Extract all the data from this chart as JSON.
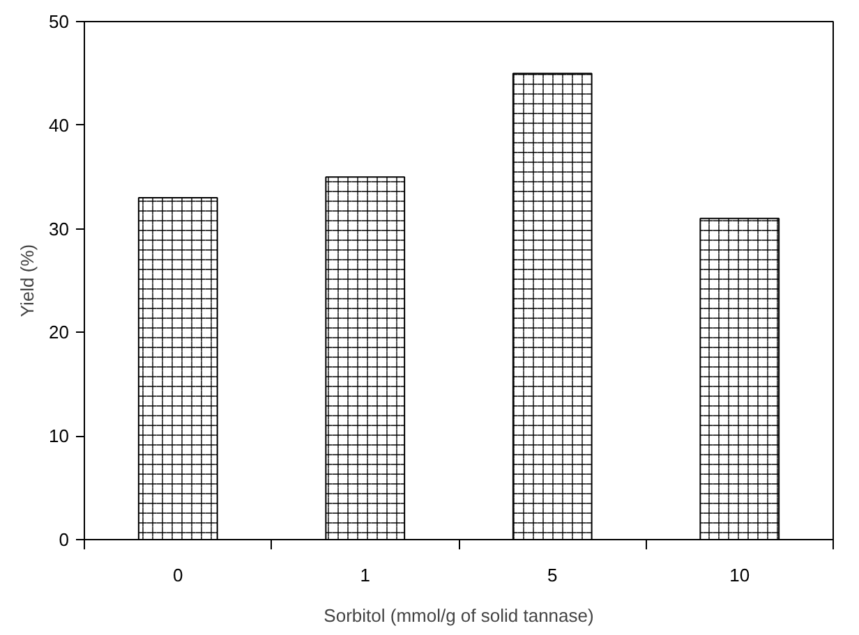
{
  "chart_data": {
    "type": "bar",
    "xlabel": "Sorbitol (mmol/g of solid tannase)",
    "ylabel": "Yield (%)",
    "categories": [
      "0",
      "1",
      "5",
      "10"
    ],
    "values": [
      33,
      35,
      45,
      31
    ],
    "color": "#000000",
    "ylim": [
      0,
      50
    ],
    "yticks": [
      0,
      10,
      20,
      30,
      40,
      50
    ],
    "grid": false
  }
}
